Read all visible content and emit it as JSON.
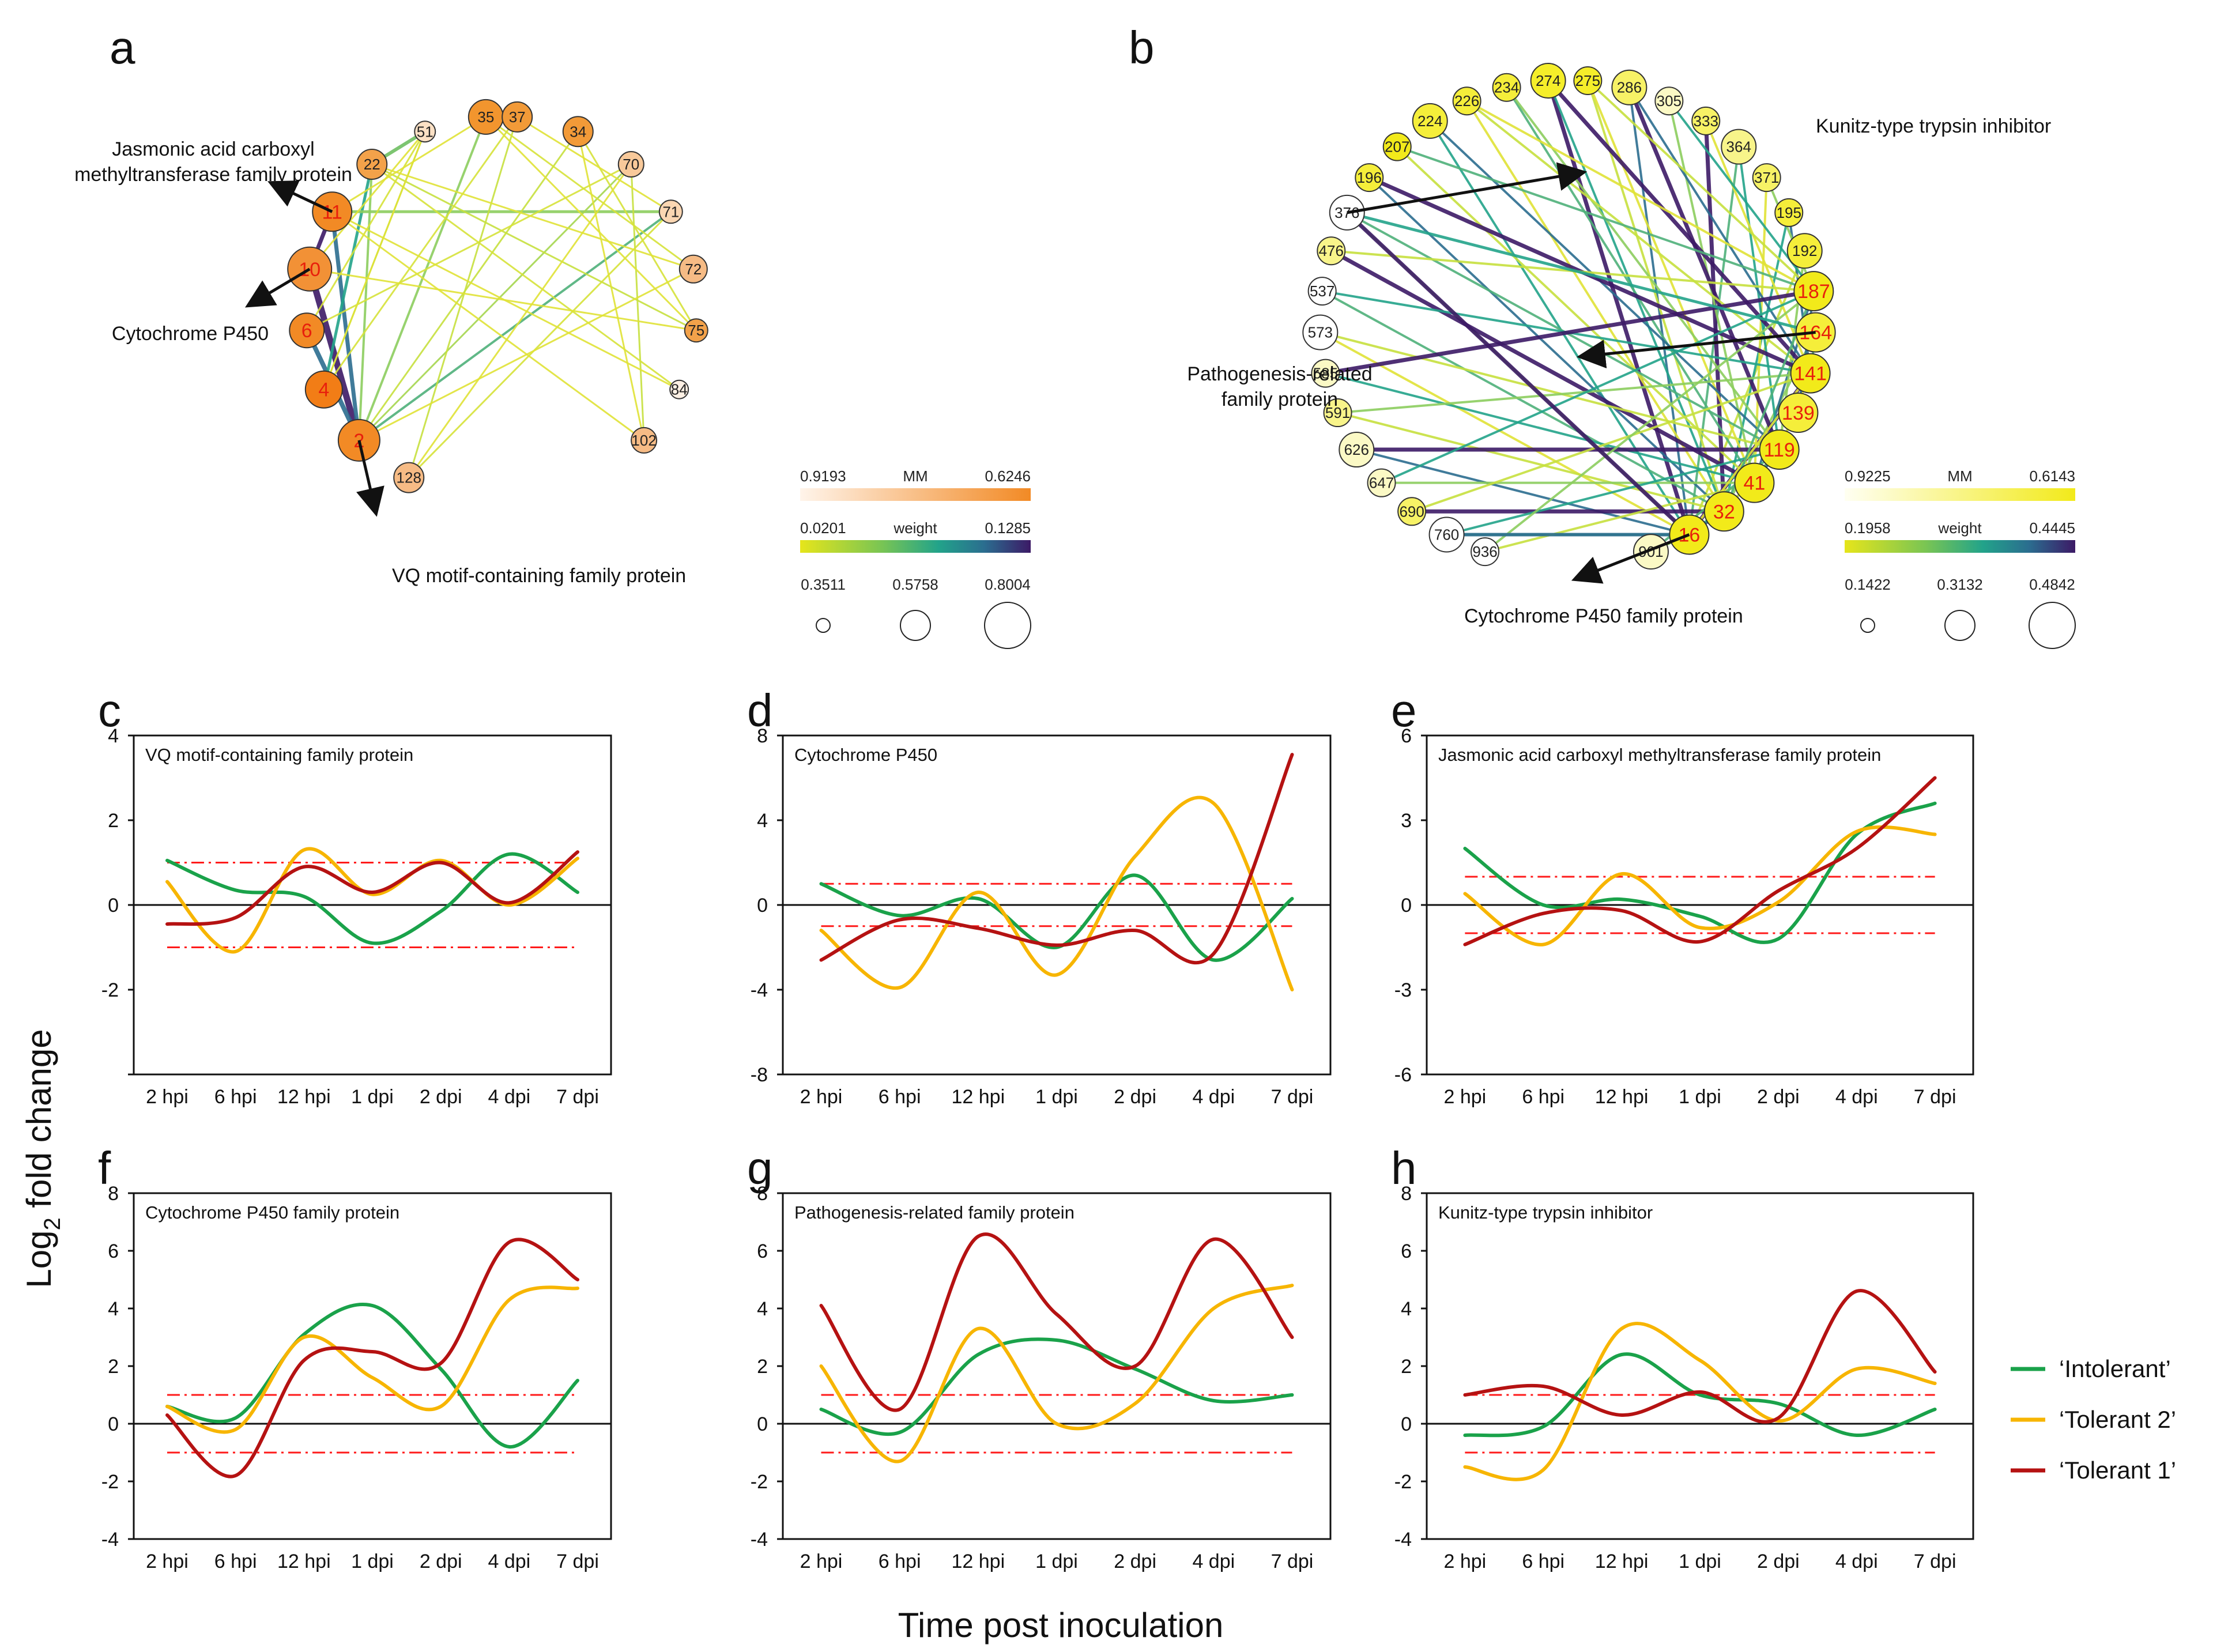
{
  "figure": {
    "y_axis_label": "Log",
    "y_axis_label_sub": "2",
    "y_axis_label_rest": "fold change",
    "x_axis_label": "Time post inoculation"
  },
  "colors": {
    "intolerant": "#1aa24a",
    "tolerant2": "#f7b500",
    "tolerant1": "#b51212",
    "threshold": "#ff1a1a",
    "callout_text": "#111111"
  },
  "legend": {
    "items": [
      {
        "label": "‘Intolerant’",
        "color": "#1aa24a"
      },
      {
        "label": "‘Tolerant 2’",
        "color": "#f7b500"
      },
      {
        "label": "‘Tolerant 1’",
        "color": "#b51212"
      }
    ]
  },
  "networks": {
    "a": {
      "panel_label": "a",
      "nodes": [
        {
          "id": "35",
          "highlight": false,
          "color": "#f2952e"
        },
        {
          "id": "37",
          "highlight": false,
          "color": "#f29a38"
        },
        {
          "id": "51",
          "highlight": false,
          "color": "#fce1c5"
        },
        {
          "id": "34",
          "highlight": false,
          "color": "#f29a38"
        },
        {
          "id": "22",
          "highlight": false,
          "color": "#f3a24a"
        },
        {
          "id": "70",
          "highlight": false,
          "color": "#f8c99a"
        },
        {
          "id": "11",
          "highlight": true,
          "color": "#f28a25"
        },
        {
          "id": "71",
          "highlight": false,
          "color": "#fad6b2"
        },
        {
          "id": "10",
          "highlight": true,
          "color": "#f29136"
        },
        {
          "id": "72",
          "highlight": false,
          "color": "#f6bb85"
        },
        {
          "id": "6",
          "highlight": true,
          "color": "#f28a25"
        },
        {
          "id": "75",
          "highlight": false,
          "color": "#f3a24a"
        },
        {
          "id": "4",
          "highlight": true,
          "color": "#f27d16"
        },
        {
          "id": "84",
          "highlight": false,
          "color": "#fdf0e4"
        },
        {
          "id": "2",
          "highlight": true,
          "color": "#f28a25"
        },
        {
          "id": "102",
          "highlight": false,
          "color": "#f6bb85"
        },
        {
          "id": "128",
          "highlight": false,
          "color": "#f6bb85"
        }
      ],
      "callouts": [
        {
          "line1": "Jasmonic acid carboxyl",
          "line2": "methyltransferase family protein"
        },
        {
          "line1": "Cytochrome P450",
          "line2": ""
        },
        {
          "line1": "VQ motif-containing family protein",
          "line2": ""
        }
      ],
      "legend": {
        "mm_label": "MM",
        "mm_min": "0.9193",
        "mm_max": "0.6246",
        "weight_label": "weight",
        "weight_min": "0.0201",
        "weight_max": "0.1285",
        "size_values": [
          "0.3511",
          "0.5758",
          "0.8004"
        ]
      }
    },
    "b": {
      "panel_label": "b",
      "nodes": [
        {
          "id": "274",
          "highlight": false,
          "color": "#f5ee2a"
        },
        {
          "id": "275",
          "highlight": false,
          "color": "#f5ee2a"
        },
        {
          "id": "234",
          "highlight": false,
          "color": "#f5ee3a"
        },
        {
          "id": "286",
          "highlight": false,
          "color": "#f7f266"
        },
        {
          "id": "226",
          "highlight": false,
          "color": "#f5ee3a"
        },
        {
          "id": "305",
          "highlight": false,
          "color": "#fbf9c5"
        },
        {
          "id": "224",
          "highlight": false,
          "color": "#f5ee3a"
        },
        {
          "id": "333",
          "highlight": false,
          "color": "#f7f266"
        },
        {
          "id": "207",
          "highlight": false,
          "color": "#f2ea1a"
        },
        {
          "id": "364",
          "highlight": false,
          "color": "#f8f48a"
        },
        {
          "id": "196",
          "highlight": false,
          "color": "#f5ee3a"
        },
        {
          "id": "371",
          "highlight": false,
          "color": "#f7f266"
        },
        {
          "id": "376",
          "highlight": false,
          "color": "#ffffff"
        },
        {
          "id": "195",
          "highlight": false,
          "color": "#f5ee3a"
        },
        {
          "id": "476",
          "highlight": false,
          "color": "#f8f48a"
        },
        {
          "id": "192",
          "highlight": false,
          "color": "#f5ee3a"
        },
        {
          "id": "537",
          "highlight": false,
          "color": "#ffffff"
        },
        {
          "id": "187",
          "highlight": true,
          "color": "#f2ea1a"
        },
        {
          "id": "573",
          "highlight": false,
          "color": "#ffffff"
        },
        {
          "id": "164",
          "highlight": true,
          "color": "#f5ee3a"
        },
        {
          "id": "585",
          "highlight": false,
          "color": "#fbf9c5"
        },
        {
          "id": "141",
          "highlight": true,
          "color": "#f2ea1a"
        },
        {
          "id": "591",
          "highlight": false,
          "color": "#f8f48a"
        },
        {
          "id": "139",
          "highlight": true,
          "color": "#f5ee3a"
        },
        {
          "id": "626",
          "highlight": false,
          "color": "#fbf9c5"
        },
        {
          "id": "119",
          "highlight": true,
          "color": "#f2ea1a"
        },
        {
          "id": "647",
          "highlight": false,
          "color": "#fbf9c5"
        },
        {
          "id": "41",
          "highlight": true,
          "color": "#f2ea1a"
        },
        {
          "id": "690",
          "highlight": false,
          "color": "#f7f266"
        },
        {
          "id": "32",
          "highlight": true,
          "color": "#f2ea1a"
        },
        {
          "id": "760",
          "highlight": false,
          "color": "#ffffff"
        },
        {
          "id": "16",
          "highlight": true,
          "color": "#f2ea1a"
        },
        {
          "id": "936",
          "highlight": false,
          "color": "#ffffff"
        },
        {
          "id": "901",
          "highlight": false,
          "color": "#fbf9c5"
        }
      ],
      "callouts": [
        {
          "line1": "Kunitz-type trypsin inhibitor",
          "line2": ""
        },
        {
          "line1": "Pathogenesis-related",
          "line2": "family protein"
        },
        {
          "line1": "Cytochrome P450 family protein",
          "line2": ""
        }
      ],
      "legend": {
        "mm_label": "MM",
        "mm_min": "0.9225",
        "mm_max": "0.6143",
        "weight_label": "weight",
        "weight_min": "0.1958",
        "weight_max": "0.4445",
        "size_values": [
          "0.1422",
          "0.3132",
          "0.4842"
        ]
      }
    }
  },
  "chart_data": [
    {
      "panel_label": "c",
      "type": "line",
      "title": "VQ motif-containing family protein",
      "categories": [
        "2 hpi",
        "6 hpi",
        "12 hpi",
        "1 dpi",
        "2 dpi",
        "4 dpi",
        "7 dpi"
      ],
      "ylim": [
        -4,
        4
      ],
      "yticks": [
        "4",
        "2",
        "0",
        "-2",
        ""
      ],
      "threshold": 1,
      "series": [
        {
          "name": "Intolerant",
          "values": [
            1.05,
            0.35,
            0.2,
            -0.9,
            -0.15,
            1.2,
            0.3
          ]
        },
        {
          "name": "Tolerant 2",
          "values": [
            0.55,
            -1.1,
            1.3,
            0.25,
            1.05,
            0.0,
            1.1
          ]
        },
        {
          "name": "Tolerant 1",
          "values": [
            -0.45,
            -0.3,
            0.9,
            0.3,
            1.0,
            0.05,
            1.25
          ]
        }
      ]
    },
    {
      "panel_label": "d",
      "type": "line",
      "title": "Cytochrome P450",
      "categories": [
        "2 hpi",
        "6 hpi",
        "12 hpi",
        "1 dpi",
        "2 dpi",
        "4 dpi",
        "7 dpi"
      ],
      "ylim": [
        -8,
        8
      ],
      "yticks": [
        "8",
        "4",
        "0",
        "-4",
        "-8"
      ],
      "threshold": 1,
      "series": [
        {
          "name": "Intolerant",
          "values": [
            1.0,
            -0.5,
            0.3,
            -2.0,
            1.4,
            -2.6,
            0.3
          ]
        },
        {
          "name": "Tolerant 2",
          "values": [
            -1.2,
            -3.9,
            0.6,
            -3.3,
            2.3,
            4.8,
            -4.0
          ]
        },
        {
          "name": "Tolerant 1",
          "values": [
            -2.6,
            -0.7,
            -1.1,
            -1.9,
            -1.2,
            -2.3,
            7.1
          ]
        }
      ]
    },
    {
      "panel_label": "e",
      "type": "line",
      "title": "Jasmonic acid carboxyl methyltransferase family protein",
      "categories": [
        "2 hpi",
        "6 hpi",
        "12 hpi",
        "1 dpi",
        "2 dpi",
        "4 dpi",
        "7 dpi"
      ],
      "ylim": [
        -6,
        6
      ],
      "yticks": [
        "6",
        "3",
        "0",
        "-3",
        "-6"
      ],
      "threshold": 1,
      "series": [
        {
          "name": "Intolerant",
          "values": [
            2.0,
            0.0,
            0.2,
            -0.4,
            -1.2,
            2.5,
            3.6
          ]
        },
        {
          "name": "Tolerant 2",
          "values": [
            0.4,
            -1.4,
            1.1,
            -0.8,
            0.1,
            2.6,
            2.5
          ]
        },
        {
          "name": "Tolerant 1",
          "values": [
            -1.4,
            -0.3,
            -0.2,
            -1.3,
            0.5,
            2.0,
            4.5
          ]
        }
      ]
    },
    {
      "panel_label": "f",
      "type": "line",
      "title": "Cytochrome P450 family protein",
      "categories": [
        "2 hpi",
        "6 hpi",
        "12 hpi",
        "1 dpi",
        "2 dpi",
        "4 dpi",
        "7 dpi"
      ],
      "ylim": [
        -4,
        8
      ],
      "yticks": [
        "8",
        "6",
        "4",
        "2",
        "0",
        "-2",
        "-4"
      ],
      "threshold": 1,
      "series": [
        {
          "name": "Intolerant",
          "values": [
            0.6,
            0.2,
            3.1,
            4.1,
            1.9,
            -0.8,
            1.5
          ]
        },
        {
          "name": "Tolerant 2",
          "values": [
            0.6,
            -0.2,
            3.0,
            1.6,
            0.6,
            4.3,
            4.7
          ]
        },
        {
          "name": "Tolerant 1",
          "values": [
            0.3,
            -1.8,
            2.2,
            2.5,
            2.1,
            6.3,
            5.0
          ]
        }
      ]
    },
    {
      "panel_label": "g",
      "type": "line",
      "title": "Pathogenesis-related family protein",
      "categories": [
        "2 hpi",
        "6 hpi",
        "12 hpi",
        "1 dpi",
        "2 dpi",
        "4 dpi",
        "7 dpi"
      ],
      "ylim": [
        -4,
        8
      ],
      "yticks": [
        "8",
        "6",
        "4",
        "2",
        "0",
        "-2",
        "-4"
      ],
      "threshold": 1,
      "series": [
        {
          "name": "Intolerant",
          "values": [
            0.5,
            -0.3,
            2.4,
            2.9,
            1.9,
            0.8,
            1.0
          ]
        },
        {
          "name": "Tolerant 2",
          "values": [
            2.0,
            -1.3,
            3.3,
            0.0,
            0.7,
            4.0,
            4.8
          ]
        },
        {
          "name": "Tolerant 1",
          "values": [
            4.1,
            0.5,
            6.5,
            3.8,
            2.0,
            6.4,
            3.0
          ]
        }
      ]
    },
    {
      "panel_label": "h",
      "type": "line",
      "title": "Kunitz-type trypsin inhibitor",
      "categories": [
        "2 hpi",
        "6 hpi",
        "12 hpi",
        "1 dpi",
        "2 dpi",
        "4 dpi",
        "7 dpi"
      ],
      "ylim": [
        -4,
        8
      ],
      "yticks": [
        "8",
        "6",
        "4",
        "2",
        "0",
        "-2",
        "-4"
      ],
      "threshold": 1,
      "series": [
        {
          "name": "Intolerant",
          "values": [
            -0.4,
            -0.1,
            2.4,
            1.0,
            0.7,
            -0.4,
            0.5
          ]
        },
        {
          "name": "Tolerant 2",
          "values": [
            -1.5,
            -1.6,
            3.3,
            2.2,
            0.1,
            1.9,
            1.4
          ]
        },
        {
          "name": "Tolerant 1",
          "values": [
            1.0,
            1.3,
            0.3,
            1.1,
            0.2,
            4.6,
            1.8
          ]
        }
      ]
    }
  ]
}
